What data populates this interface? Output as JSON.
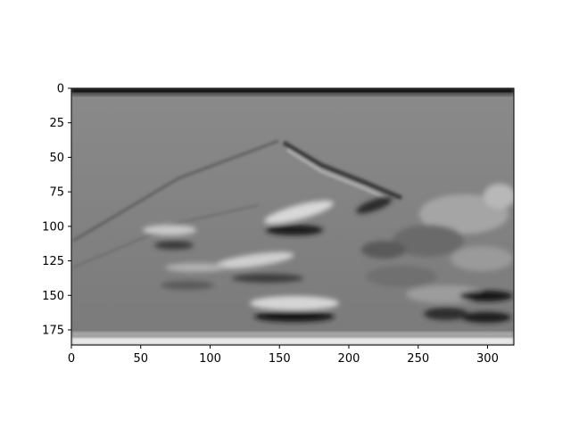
{
  "chart_data": {
    "type": "heatmap",
    "colormap": "gray",
    "description_visible": "",
    "title": "",
    "xlabel": "",
    "ylabel": "",
    "xlim": [
      0,
      319
    ],
    "ylim": [
      186,
      0
    ],
    "x_ticks": [
      0,
      50,
      100,
      150,
      200,
      250,
      300
    ],
    "y_ticks": [
      0,
      25,
      50,
      75,
      100,
      125,
      150,
      175
    ],
    "grid": false,
    "legend": "none",
    "colors": {
      "background": "#ffffff",
      "axes_edge": "#000000",
      "image_mid_gray": "#7f7f7f",
      "image_top_band": "#111111",
      "image_bottom_band": "#e8e8e8"
    }
  }
}
